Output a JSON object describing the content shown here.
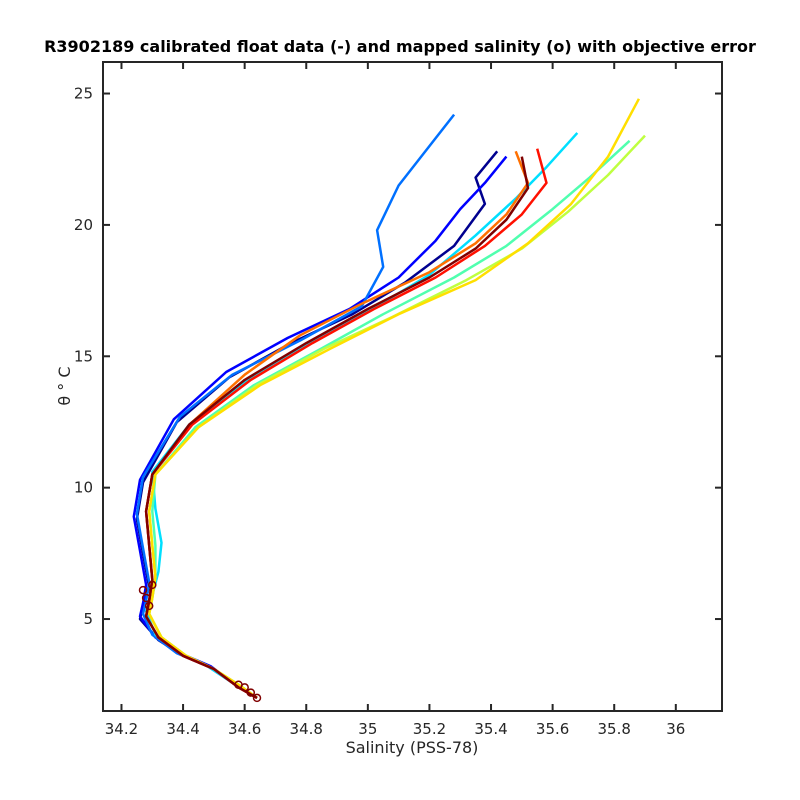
{
  "chart_data": {
    "type": "line",
    "title": "R3902189 calibrated float data (-) and mapped salinity (o) with objective error",
    "xlabel": "Salinity (PSS-78)",
    "ylabel": "θ ° C",
    "xlim": [
      34.14,
      36.15
    ],
    "ylim": [
      1.5,
      26.2
    ],
    "x_ticks": [
      34.2,
      34.4,
      34.6,
      34.8,
      35.0,
      35.2,
      35.4,
      35.6,
      35.8,
      36.0
    ],
    "x_tick_labels": [
      "34.2",
      "34.4",
      "34.6",
      "34.8",
      "35",
      "35.2",
      "35.4",
      "35.6",
      "35.8",
      "36"
    ],
    "y_ticks": [
      5,
      10,
      15,
      20,
      25
    ],
    "y_tick_labels": [
      "5",
      "10",
      "15",
      "20",
      "25"
    ],
    "grid": false,
    "legend": "none",
    "colormap": "jet (profile index, early = blue, late = dark red)",
    "series": [
      {
        "color": "#00008f",
        "x": [
          34.64,
          34.58,
          34.5,
          34.4,
          34.32,
          34.26,
          34.27,
          34.29,
          34.27,
          34.25,
          34.27,
          34.38,
          34.55,
          34.75,
          34.95,
          35.12,
          35.28,
          35.38,
          35.35,
          35.42
        ],
        "y": [
          2.0,
          2.4,
          3.1,
          3.6,
          4.2,
          5.0,
          5.5,
          6.2,
          7.5,
          8.8,
          10.2,
          12.5,
          14.2,
          15.5,
          16.6,
          17.8,
          19.2,
          20.8,
          21.8,
          22.8
        ]
      },
      {
        "color": "#0000ff",
        "x": [
          34.64,
          34.57,
          34.49,
          34.39,
          34.31,
          34.26,
          34.27,
          34.28,
          34.26,
          34.24,
          34.26,
          34.37,
          34.54,
          34.74,
          34.94,
          35.1,
          35.22,
          35.3,
          35.38,
          35.45
        ],
        "y": [
          2.0,
          2.5,
          3.2,
          3.7,
          4.3,
          5.1,
          5.6,
          6.3,
          7.6,
          8.9,
          10.3,
          12.6,
          14.4,
          15.7,
          16.8,
          18.0,
          19.4,
          20.6,
          21.6,
          22.6
        ]
      },
      {
        "color": "#0070ff",
        "x": [
          34.64,
          34.57,
          34.48,
          34.38,
          34.3,
          34.27,
          34.28,
          34.29,
          34.27,
          34.25,
          34.27,
          34.39,
          34.56,
          34.78,
          34.98,
          35.05,
          35.03,
          35.1,
          35.2,
          35.28
        ],
        "y": [
          2.0,
          2.5,
          3.2,
          3.7,
          4.4,
          5.2,
          5.7,
          6.4,
          7.7,
          9.0,
          10.4,
          12.7,
          14.3,
          15.6,
          16.9,
          18.4,
          19.8,
          21.5,
          23.0,
          24.2
        ]
      },
      {
        "color": "#00dfff",
        "x": [
          34.64,
          34.57,
          34.48,
          34.39,
          34.31,
          34.28,
          34.3,
          34.32,
          34.33,
          34.31,
          34.3,
          34.42,
          34.6,
          34.8,
          35.0,
          35.2,
          35.35,
          35.48,
          35.58,
          35.68
        ],
        "y": [
          2.0,
          2.5,
          3.2,
          3.7,
          4.4,
          5.3,
          5.9,
          6.8,
          7.9,
          9.2,
          10.6,
          12.4,
          14.0,
          15.4,
          16.7,
          18.1,
          19.6,
          21.0,
          22.2,
          23.5
        ]
      },
      {
        "color": "#50ffaf",
        "x": [
          34.64,
          34.58,
          34.5,
          34.41,
          34.33,
          34.29,
          34.3,
          34.31,
          34.31,
          34.3,
          34.31,
          34.44,
          34.63,
          34.85,
          35.05,
          35.28,
          35.45,
          35.6,
          35.72,
          35.85
        ],
        "y": [
          2.0,
          2.5,
          3.1,
          3.6,
          4.3,
          5.2,
          5.8,
          6.6,
          7.8,
          9.1,
          10.5,
          12.3,
          13.9,
          15.3,
          16.6,
          18.0,
          19.2,
          20.6,
          21.8,
          23.2
        ]
      },
      {
        "color": "#bfff40",
        "x": [
          34.64,
          34.58,
          34.5,
          34.41,
          34.33,
          34.29,
          34.3,
          34.31,
          34.3,
          34.29,
          34.31,
          34.45,
          34.64,
          34.86,
          35.08,
          35.32,
          35.5,
          35.65,
          35.78,
          35.9
        ],
        "y": [
          2.0,
          2.5,
          3.1,
          3.6,
          4.3,
          5.2,
          5.8,
          6.6,
          7.8,
          9.1,
          10.5,
          12.3,
          13.9,
          15.3,
          16.5,
          17.9,
          19.1,
          20.5,
          21.9,
          23.4
        ]
      },
      {
        "color": "#ffdf00",
        "x": [
          34.64,
          34.58,
          34.5,
          34.41,
          34.33,
          34.29,
          34.3,
          34.31,
          34.3,
          34.29,
          34.31,
          34.45,
          34.65,
          34.88,
          35.1,
          35.35,
          35.52,
          35.66,
          35.78,
          35.88
        ],
        "y": [
          2.0,
          2.5,
          3.1,
          3.6,
          4.3,
          5.2,
          5.8,
          6.6,
          7.8,
          9.1,
          10.5,
          12.3,
          13.9,
          15.3,
          16.6,
          17.9,
          19.3,
          20.8,
          22.6,
          24.8
        ]
      },
      {
        "color": "#ff7000",
        "x": [
          34.64,
          34.58,
          34.5,
          34.4,
          34.32,
          34.28,
          34.29,
          34.3,
          34.29,
          34.28,
          34.3,
          34.43,
          34.6,
          34.78,
          34.98,
          35.2,
          35.35,
          35.45,
          35.52,
          35.48
        ],
        "y": [
          2.0,
          2.4,
          3.1,
          3.6,
          4.3,
          5.1,
          5.7,
          6.5,
          7.8,
          9.1,
          10.5,
          12.5,
          14.3,
          15.8,
          17.0,
          18.2,
          19.3,
          20.4,
          21.6,
          22.8
        ]
      },
      {
        "color": "#ff1000",
        "x": [
          34.64,
          34.58,
          34.5,
          34.4,
          34.32,
          34.28,
          34.29,
          34.3,
          34.29,
          34.28,
          34.3,
          34.43,
          34.62,
          34.82,
          35.02,
          35.22,
          35.38,
          35.5,
          35.58,
          35.55
        ],
        "y": [
          2.0,
          2.4,
          3.1,
          3.6,
          4.3,
          5.1,
          5.7,
          6.5,
          7.8,
          9.1,
          10.5,
          12.4,
          14.1,
          15.5,
          16.8,
          18.0,
          19.2,
          20.4,
          21.6,
          22.9
        ]
      },
      {
        "color": "#800000",
        "x": [
          34.64,
          34.58,
          34.5,
          34.4,
          34.32,
          34.28,
          34.29,
          34.3,
          34.29,
          34.28,
          34.3,
          34.42,
          34.6,
          34.8,
          35.0,
          35.2,
          35.35,
          35.45,
          35.52,
          35.5
        ],
        "y": [
          2.0,
          2.4,
          3.1,
          3.6,
          4.3,
          5.1,
          5.7,
          6.5,
          7.8,
          9.1,
          10.5,
          12.4,
          14.1,
          15.5,
          16.8,
          18.0,
          19.1,
          20.2,
          21.4,
          22.6
        ]
      }
    ],
    "mapped_points": {
      "color": "#800000",
      "marker": "circle",
      "x": [
        34.64,
        34.62,
        34.6,
        34.58,
        34.29,
        34.28,
        34.27,
        34.3
      ],
      "y": [
        2.0,
        2.2,
        2.4,
        2.5,
        5.5,
        5.8,
        6.1,
        6.3
      ]
    }
  }
}
